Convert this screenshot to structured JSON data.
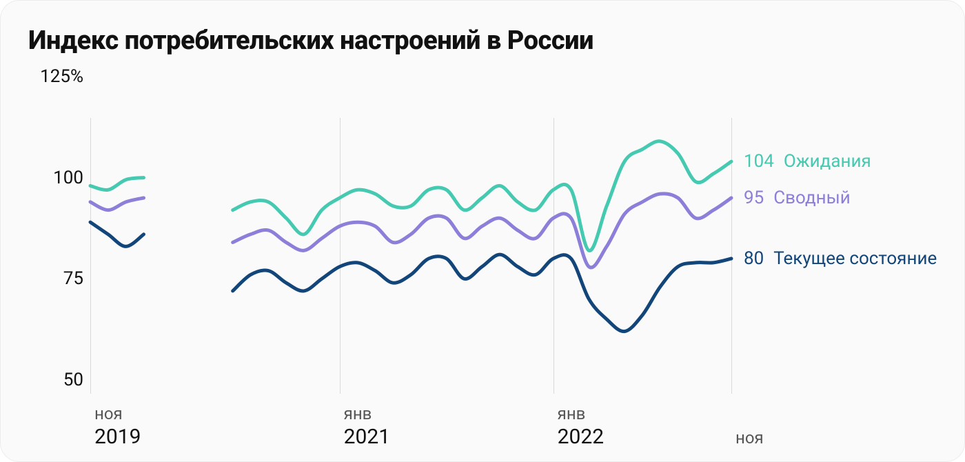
{
  "title": "Индекс потребительских настроений в России",
  "chart": {
    "type": "line",
    "background_color": "#fafafa",
    "card_border_color": "#ececec",
    "card_border_radius": 28,
    "grid_color": "#d9d9d9",
    "title_fontsize": 38,
    "title_color": "#111111",
    "axis_label_color": "#111111",
    "axis_label_fontsize": 26,
    "x_month_color": "#555555",
    "line_width": 5,
    "y_axis": {
      "min": 50,
      "max": 125,
      "ticks": [
        {
          "v": 125,
          "label": "125%"
        },
        {
          "v": 100,
          "label": "100"
        },
        {
          "v": 75,
          "label": "75"
        },
        {
          "v": 50,
          "label": "50"
        }
      ]
    },
    "x_axis": {
      "min": 0,
      "max": 36,
      "ticks": [
        {
          "x": 0,
          "month": "ноя",
          "year": "2019",
          "rule": true
        },
        {
          "x": 14,
          "month": "янв",
          "year": "2021",
          "rule": true
        },
        {
          "x": 26,
          "month": "янв",
          "year": "2022",
          "rule": true
        },
        {
          "x": 36,
          "month": "ноя",
          "year": "",
          "rule": true
        }
      ]
    },
    "gap": {
      "from": 3,
      "to": 8
    },
    "series": [
      {
        "id": "expectations",
        "label": "Ожидания",
        "end_value_label": "104",
        "color": "#45c9b0",
        "label_color": "#45c9b0",
        "data": [
          [
            0,
            98
          ],
          [
            1,
            97
          ],
          [
            2,
            99.5
          ],
          [
            3,
            100
          ],
          [
            8,
            92
          ],
          [
            9,
            94
          ],
          [
            10,
            94
          ],
          [
            11,
            90
          ],
          [
            12,
            86
          ],
          [
            13,
            92
          ],
          [
            14,
            95
          ],
          [
            15,
            97
          ],
          [
            16,
            96
          ],
          [
            17,
            93
          ],
          [
            18,
            93
          ],
          [
            19,
            97
          ],
          [
            20,
            97
          ],
          [
            21,
            92
          ],
          [
            22,
            95
          ],
          [
            23,
            98
          ],
          [
            24,
            94
          ],
          [
            25,
            92
          ],
          [
            26,
            97
          ],
          [
            27,
            97
          ],
          [
            28,
            82
          ],
          [
            29,
            93
          ],
          [
            30,
            104
          ],
          [
            31,
            107
          ],
          [
            32,
            109
          ],
          [
            33,
            106
          ],
          [
            34,
            99
          ],
          [
            35,
            101
          ],
          [
            36,
            104
          ]
        ]
      },
      {
        "id": "composite",
        "label": "Сводный",
        "end_value_label": "95",
        "color": "#8b7fd9",
        "label_color": "#8b7fd9",
        "data": [
          [
            0,
            94
          ],
          [
            1,
            92
          ],
          [
            2,
            94
          ],
          [
            3,
            95
          ],
          [
            8,
            84
          ],
          [
            9,
            86
          ],
          [
            10,
            87
          ],
          [
            11,
            84
          ],
          [
            12,
            82
          ],
          [
            13,
            85
          ],
          [
            14,
            88
          ],
          [
            15,
            89
          ],
          [
            16,
            88
          ],
          [
            17,
            84
          ],
          [
            18,
            86
          ],
          [
            19,
            90
          ],
          [
            20,
            90
          ],
          [
            21,
            85
          ],
          [
            22,
            88
          ],
          [
            23,
            90
          ],
          [
            24,
            87
          ],
          [
            25,
            85
          ],
          [
            26,
            90
          ],
          [
            27,
            90
          ],
          [
            28,
            78
          ],
          [
            29,
            83
          ],
          [
            30,
            91
          ],
          [
            31,
            94
          ],
          [
            32,
            96
          ],
          [
            33,
            95
          ],
          [
            34,
            90
          ],
          [
            35,
            92
          ],
          [
            36,
            95
          ]
        ]
      },
      {
        "id": "current",
        "label": "Текущее состояние",
        "end_value_label": "80",
        "color": "#12467a",
        "label_color": "#12467a",
        "data": [
          [
            0,
            89
          ],
          [
            1,
            86
          ],
          [
            2,
            83
          ],
          [
            3,
            86
          ],
          [
            8,
            72
          ],
          [
            9,
            76
          ],
          [
            10,
            77
          ],
          [
            11,
            74
          ],
          [
            12,
            72
          ],
          [
            13,
            75
          ],
          [
            14,
            78
          ],
          [
            15,
            79
          ],
          [
            16,
            77
          ],
          [
            17,
            74
          ],
          [
            18,
            76
          ],
          [
            19,
            80
          ],
          [
            20,
            80
          ],
          [
            21,
            75
          ],
          [
            22,
            78
          ],
          [
            23,
            81
          ],
          [
            24,
            78
          ],
          [
            25,
            76
          ],
          [
            26,
            80
          ],
          [
            27,
            80
          ],
          [
            28,
            70
          ],
          [
            29,
            65
          ],
          [
            30,
            62
          ],
          [
            31,
            66
          ],
          [
            32,
            73
          ],
          [
            33,
            78
          ],
          [
            34,
            79
          ],
          [
            35,
            79
          ],
          [
            36,
            80
          ]
        ]
      }
    ]
  }
}
